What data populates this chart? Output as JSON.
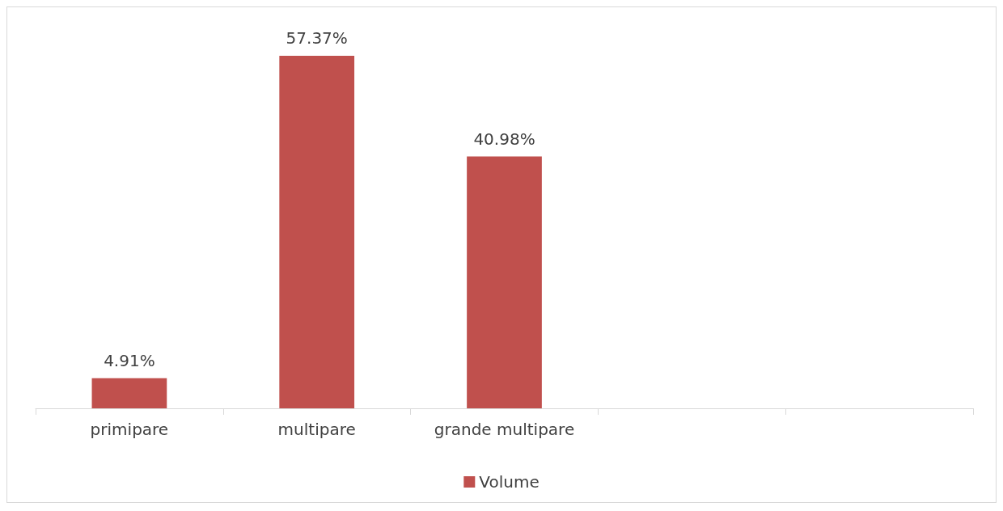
{
  "chart_data": {
    "type": "bar",
    "categories": [
      "primipare",
      "multipare",
      "grande multipare",
      null,
      null
    ],
    "series": [
      {
        "name": "Volume",
        "color": "#c0504d",
        "values": [
          4.91,
          57.37,
          40.98,
          null,
          null
        ],
        "value_labels": [
          "4.91%",
          "57.37%",
          "40.98%",
          null,
          null
        ]
      }
    ],
    "legend": "bottom",
    "grid": false
  }
}
